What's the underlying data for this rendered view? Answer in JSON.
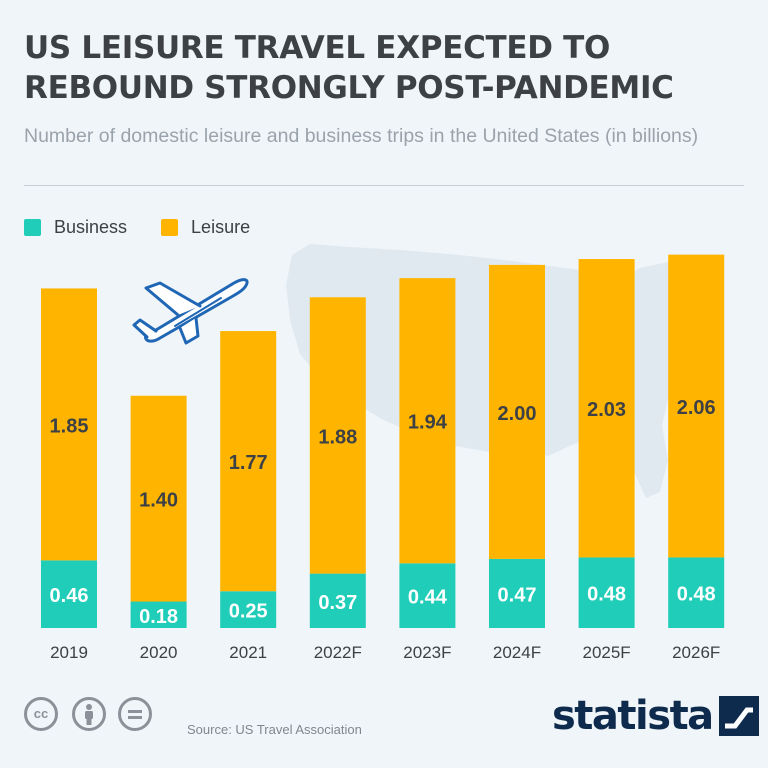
{
  "header": {
    "title": "US LEISURE TRAVEL EXPECTED TO REBOUND STRONGLY POST-PANDEMIC",
    "subtitle": "Number of domestic leisure and business trips in the United States (in billions)"
  },
  "legend": [
    {
      "label": "Business",
      "color": "#1fcdb8"
    },
    {
      "label": "Leisure",
      "color": "#ffb500"
    }
  ],
  "chart_data": {
    "type": "bar",
    "stacked": true,
    "categories": [
      "2019",
      "2020",
      "2021",
      "2022F",
      "2023F",
      "2024F",
      "2025F",
      "2026F"
    ],
    "series": [
      {
        "name": "Business",
        "color": "#1fcdb8",
        "values": [
          0.46,
          0.18,
          0.25,
          0.37,
          0.44,
          0.47,
          0.48,
          0.48
        ]
      },
      {
        "name": "Leisure",
        "color": "#ffb500",
        "values": [
          1.85,
          1.4,
          1.77,
          1.88,
          1.94,
          2.0,
          2.03,
          2.06
        ]
      }
    ],
    "value_labels": [
      [
        "0.46",
        "0.18",
        "0.25",
        "0.37",
        "0.44",
        "0.47",
        "0.48",
        "0.48"
      ],
      [
        "1.85",
        "1.40",
        "1.77",
        "1.88",
        "1.94",
        "2.00",
        "2.03",
        "2.06"
      ]
    ],
    "grid": false,
    "legend_position": "top-left"
  },
  "footer": {
    "source": "Source: US Travel Association",
    "brand": "statista",
    "license_icons": [
      "cc-icon",
      "attribution-icon",
      "no-derivatives-icon"
    ]
  },
  "colors": {
    "background": "#f0f5f9",
    "title": "#3d4145",
    "subtitle": "#9aa3ab",
    "brand": "#0e2a4c",
    "plane": "#1f66b5"
  }
}
